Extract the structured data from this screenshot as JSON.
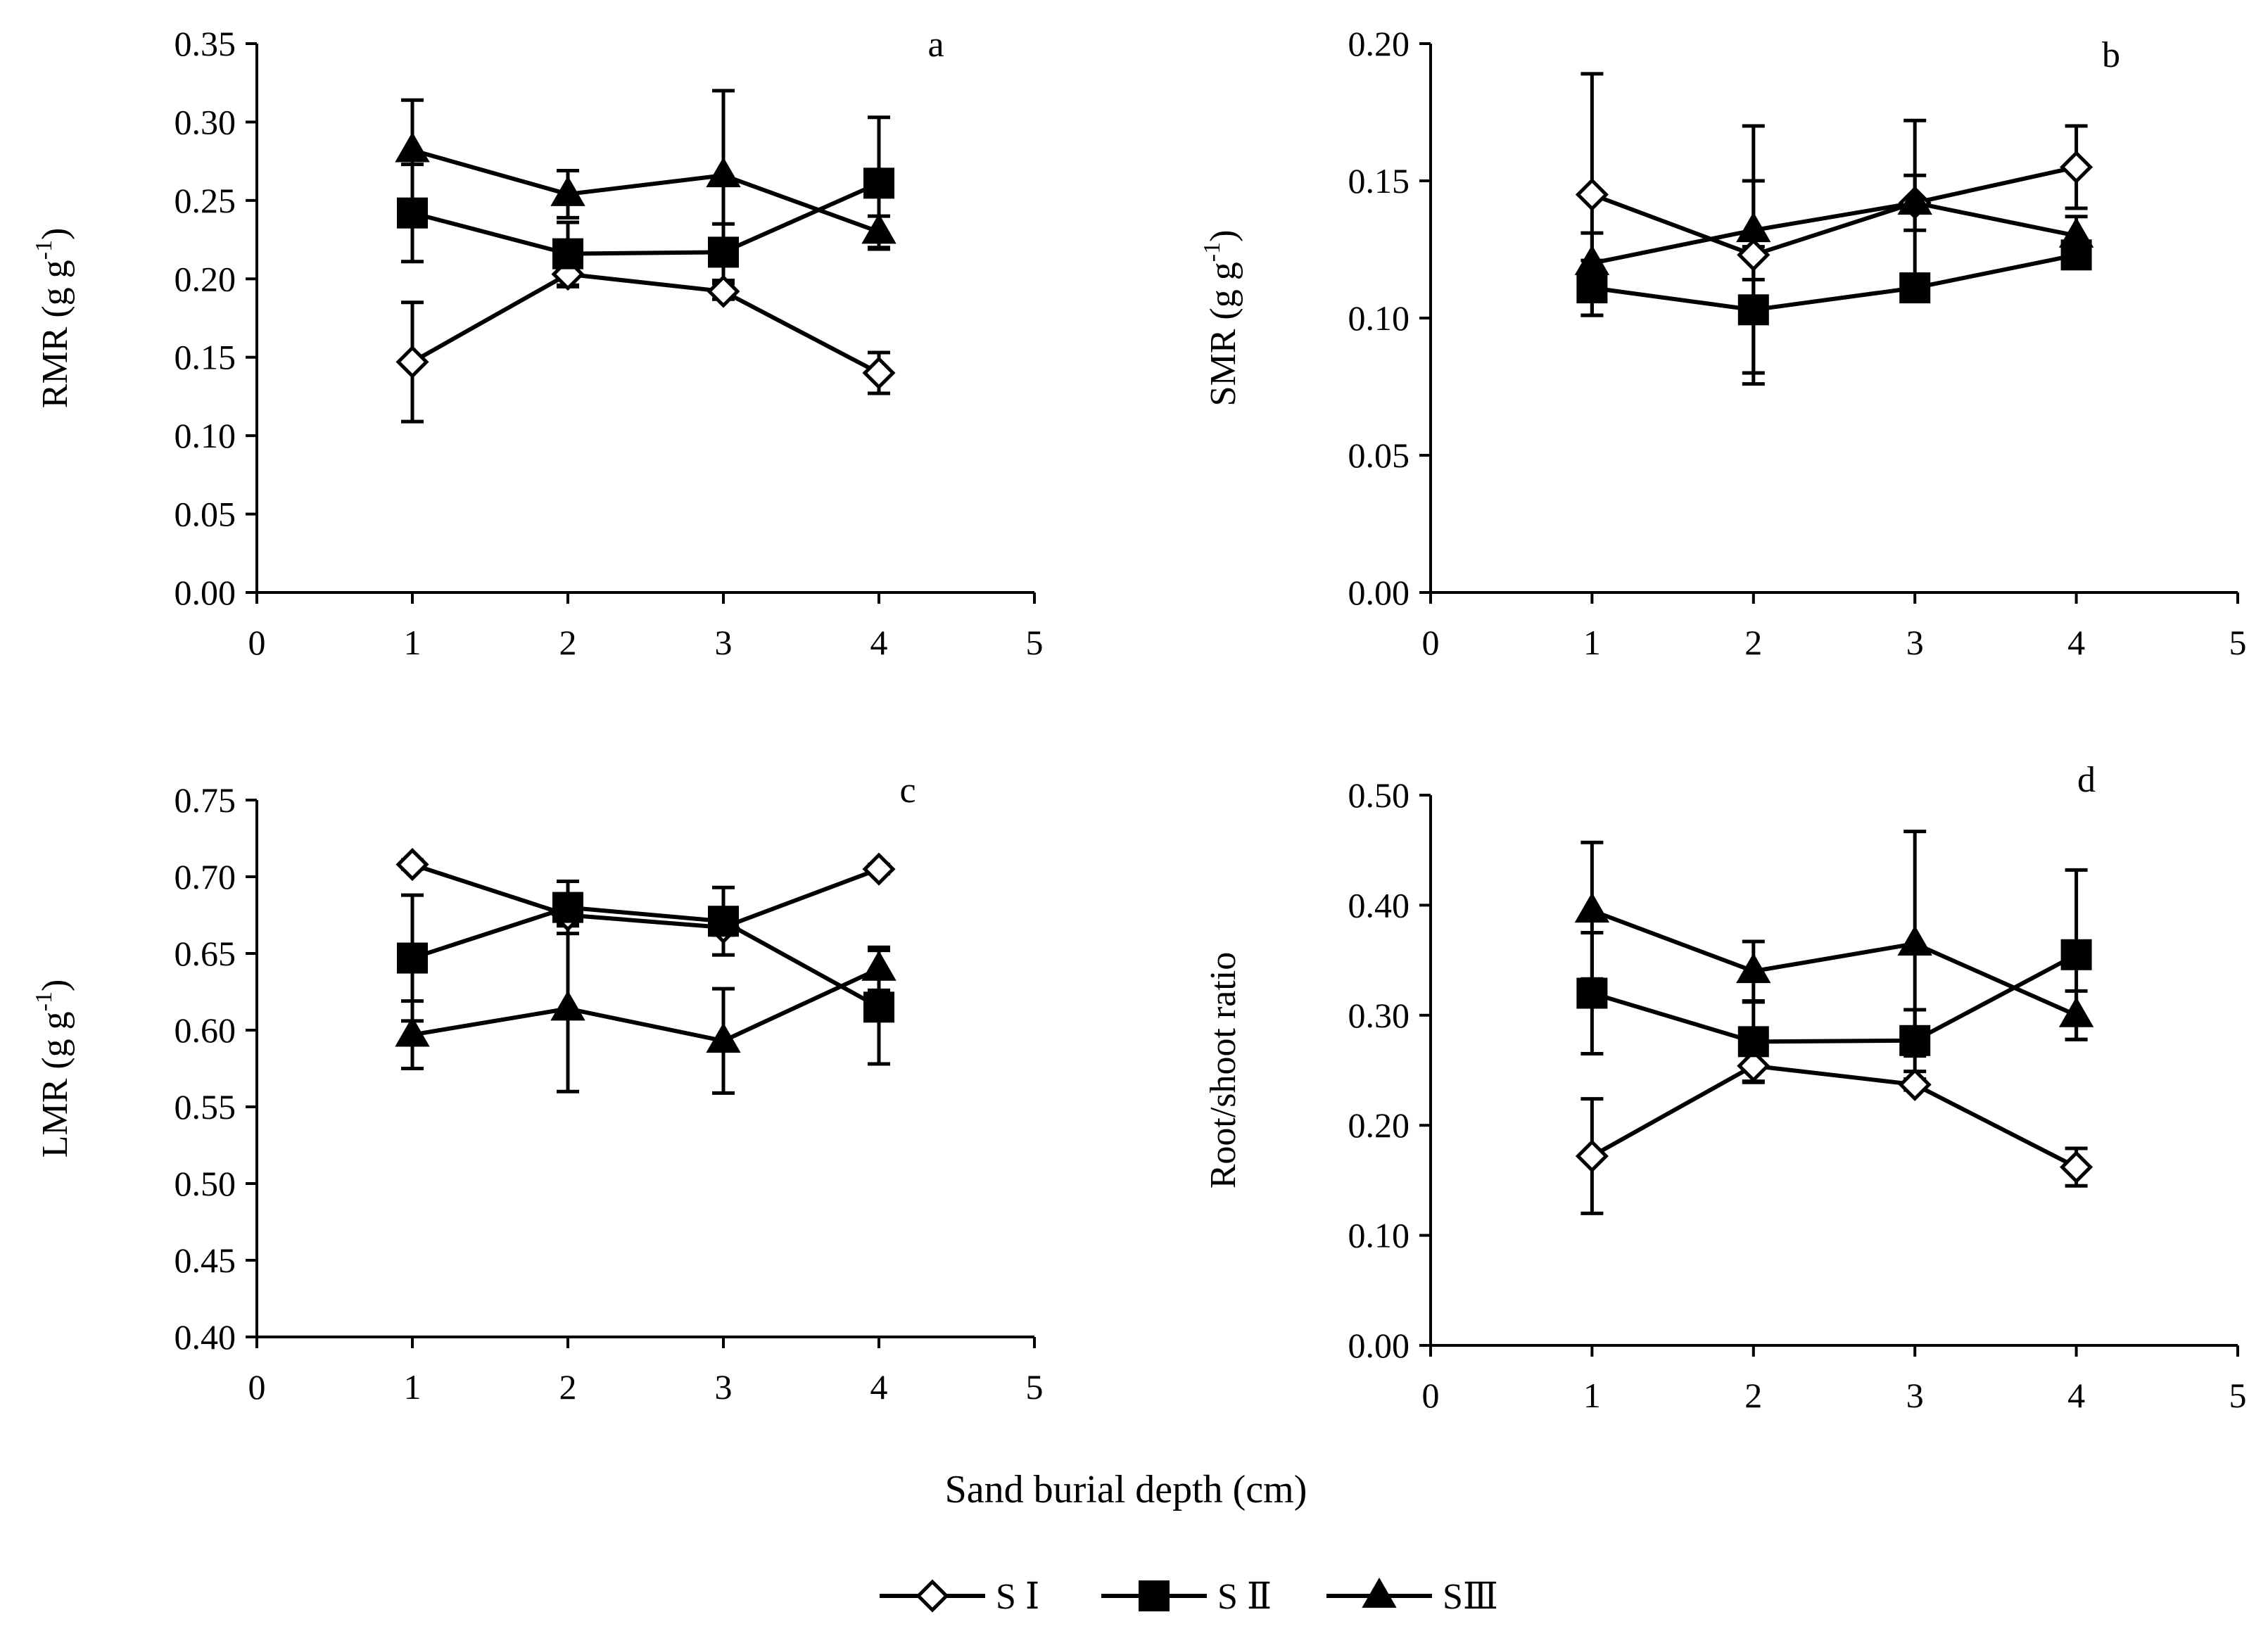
{
  "xlabel": "Sand burial depth (cm)",
  "legend": [
    {
      "key": "S1",
      "label": "S Ⅰ",
      "marker": "diamond-open"
    },
    {
      "key": "S2",
      "label": "S Ⅱ",
      "marker": "square-filled"
    },
    {
      "key": "S3",
      "label": "SⅢ",
      "marker": "triangle-filled"
    }
  ],
  "chart_data": [
    {
      "type": "line",
      "panel": "a",
      "ylabel": "RMR (g g-1)",
      "ylabel_main": "RMR (g g",
      "ylabel_sup": "-1",
      "ylabel_end": ")",
      "xlim": [
        0,
        5
      ],
      "ylim": [
        0,
        0.35
      ],
      "xticks": [
        "0",
        "1",
        "2",
        "3",
        "4",
        "5"
      ],
      "yticks": [
        "0.00",
        "0.05",
        "0.10",
        "0.15",
        "0.20",
        "0.25",
        "0.30",
        "0.35"
      ],
      "x": [
        1,
        2,
        3,
        4
      ],
      "series": [
        {
          "name": "S Ⅰ",
          "values": [
            0.147,
            0.203,
            0.192,
            0.14
          ],
          "errors": [
            0.038,
            0.008,
            0.005,
            0.013
          ]
        },
        {
          "name": "S Ⅱ",
          "values": [
            0.242,
            0.216,
            0.217,
            0.261
          ],
          "errors": [
            0.031,
            0.02,
            0.018,
            0.042
          ]
        },
        {
          "name": "SⅢ",
          "values": [
            0.282,
            0.254,
            0.266,
            0.23
          ],
          "errors": [
            0.032,
            0.015,
            0.054,
            0.01
          ]
        }
      ]
    },
    {
      "type": "line",
      "panel": "b",
      "ylabel": "SMR (g g-1)",
      "ylabel_main": "SMR (g g",
      "ylabel_sup": "-1",
      "ylabel_end": ")",
      "xlim": [
        0,
        5
      ],
      "ylim": [
        0,
        0.2
      ],
      "xticks": [
        "0",
        "1",
        "2",
        "3",
        "4",
        "5"
      ],
      "yticks": [
        "0.00",
        "0.05",
        "0.10",
        "0.15",
        "0.20"
      ],
      "x": [
        1,
        2,
        3,
        4
      ],
      "series": [
        {
          "name": "S Ⅰ",
          "values": [
            0.145,
            0.123,
            0.142,
            0.155
          ],
          "errors": [
            0.044,
            0.047,
            0.03,
            0.015
          ]
        },
        {
          "name": "S Ⅱ",
          "values": [
            0.111,
            0.103,
            0.111,
            0.123
          ],
          "errors": [
            0.01,
            0.023,
            0.003,
            0.003
          ]
        },
        {
          "name": "SⅢ",
          "values": [
            0.12,
            0.132,
            0.142,
            0.13
          ],
          "errors": [
            0.011,
            0.018,
            0.01,
            0.007
          ]
        }
      ]
    },
    {
      "type": "line",
      "panel": "c",
      "ylabel": "LMR (g g-1)",
      "ylabel_main": "LMR (g g",
      "ylabel_sup": "-1",
      "ylabel_end": ")",
      "xlim": [
        0,
        5
      ],
      "ylim": [
        0.4,
        0.75
      ],
      "xticks": [
        "0",
        "1",
        "2",
        "3",
        "4",
        "5"
      ],
      "yticks": [
        "0.40",
        "0.45",
        "0.50",
        "0.55",
        "0.60",
        "0.65",
        "0.70",
        "0.75"
      ],
      "x": [
        1,
        2,
        3,
        4
      ],
      "series": [
        {
          "name": "S Ⅰ",
          "values": [
            0.708,
            0.675,
            0.667,
            0.705
          ],
          "errors": [
            0.003,
            0.005,
            0.005,
            0.003
          ]
        },
        {
          "name": "S Ⅱ",
          "values": [
            0.647,
            0.68,
            0.671,
            0.615
          ],
          "errors": [
            0.041,
            0.017,
            0.022,
            0.037
          ]
        },
        {
          "name": "SⅢ",
          "values": [
            0.597,
            0.614,
            0.593,
            0.64
          ],
          "errors": [
            0.022,
            0.054,
            0.034,
            0.014
          ]
        }
      ]
    },
    {
      "type": "line",
      "panel": "d",
      "ylabel": "Root/shoot ratio",
      "ylabel_main": "Root/shoot ratio",
      "ylabel_sup": "",
      "ylabel_end": "",
      "xlim": [
        0,
        5
      ],
      "ylim": [
        0,
        0.5
      ],
      "xticks": [
        "0",
        "1",
        "2",
        "3",
        "4",
        "5"
      ],
      "yticks": [
        "0.00",
        "0.10",
        "0.20",
        "0.30",
        "0.40",
        "0.50"
      ],
      "x": [
        1,
        2,
        3,
        4
      ],
      "series": [
        {
          "name": "S Ⅰ",
          "values": [
            0.172,
            0.254,
            0.237,
            0.162
          ],
          "errors": [
            0.052,
            0.015,
            0.005,
            0.017
          ]
        },
        {
          "name": "S Ⅱ",
          "values": [
            0.32,
            0.276,
            0.277,
            0.355
          ],
          "errors": [
            0.055,
            0.036,
            0.028,
            0.077
          ]
        },
        {
          "name": "SⅢ",
          "values": [
            0.395,
            0.34,
            0.365,
            0.3
          ],
          "errors": [
            0.062,
            0.027,
            0.102,
            0.022
          ]
        }
      ]
    }
  ]
}
